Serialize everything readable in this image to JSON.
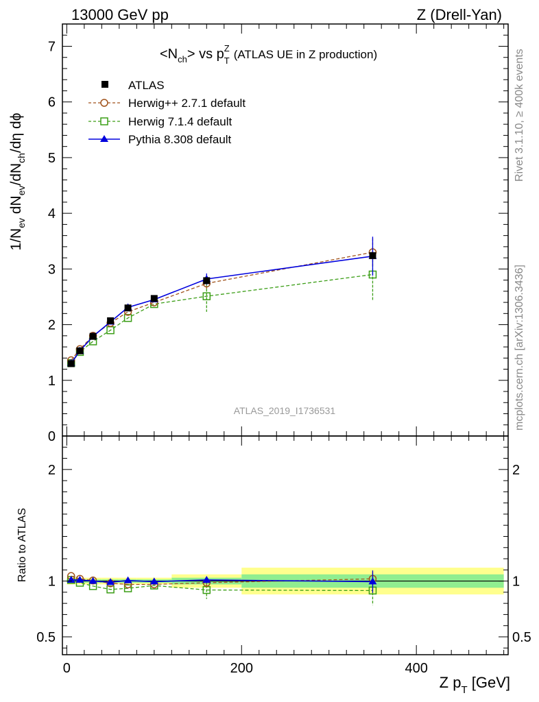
{
  "header": {
    "left": "13000 GeV pp",
    "right": "Z (Drell-Yan)"
  },
  "plot_title": {
    "main": "<N",
    "main_sub": "ch",
    "vs": "> vs p",
    "p_sup": "Z",
    "p_sub": "T",
    "suffix": "(ATLAS UE in Z production)"
  },
  "y_axis_label": {
    "a": "1/N",
    "a_sub": "ev",
    "b": " dN",
    "b_sub": "ev",
    "c": "/dN",
    "c_sub": "ch",
    "d": "/dη dϕ"
  },
  "ratio_y_label": "Ratio to ATLAS",
  "x_axis_label": {
    "a": "Z p",
    "a_sub": "T",
    "b": " [GeV]"
  },
  "side_text": {
    "rivet": "Rivet 3.1.10, ≥ 400k events",
    "mcplots": "mcplots.cern.ch [arXiv:1306.3436]"
  },
  "watermark": "ATLAS_2019_I1736531",
  "colors": {
    "atlas": "#000000",
    "herwigpp": "#a0521b",
    "herwig7": "#3a9d15",
    "pythia": "#0000dd",
    "band_inner": "#90ee90",
    "band_outer": "#ffff8e"
  },
  "chart_data": {
    "type": "line",
    "x_range": [
      -5,
      505
    ],
    "main_ylim": [
      0,
      7.4
    ],
    "ratio_ylim": [
      0.34,
      2.3
    ],
    "main_yticks": [
      0,
      1,
      2,
      3,
      4,
      5,
      6,
      7
    ],
    "main_ytick_labels": [
      "0",
      "1",
      "2",
      "3",
      "4",
      "5",
      "6",
      "7"
    ],
    "ratio_yticks": [
      0.5,
      1,
      2
    ],
    "ratio_ytick_labels": [
      "0.5",
      "1",
      "2"
    ],
    "xticks": [
      0,
      200,
      400
    ],
    "xtick_labels": [
      "0",
      "200",
      "400"
    ],
    "bins": [
      [
        0,
        10
      ],
      [
        10,
        20
      ],
      [
        20,
        40
      ],
      [
        40,
        60
      ],
      [
        60,
        80
      ],
      [
        80,
        120
      ],
      [
        120,
        200
      ],
      [
        200,
        500
      ]
    ],
    "x": [
      5,
      15,
      30,
      50,
      70,
      100,
      160,
      350
    ],
    "series": [
      {
        "name": "ATLAS",
        "marker": "square-filled",
        "values": [
          1.3,
          1.53,
          1.79,
          2.07,
          2.3,
          2.47,
          2.79,
          3.24
        ]
      },
      {
        "name": "Herwig++ 2.7.1 default",
        "marker": "circle-open",
        "dashed": true,
        "values": [
          1.36,
          1.56,
          1.8,
          2.03,
          2.23,
          2.4,
          2.74,
          3.3
        ],
        "errors": [
          0,
          0,
          0,
          0,
          0,
          0,
          0.1,
          0.25
        ],
        "ratio": [
          1.045,
          1.02,
          1.005,
          0.98,
          0.97,
          0.97,
          0.985,
          1.02
        ],
        "ratio_errors": [
          0,
          0,
          0,
          0,
          0,
          0,
          0.03,
          0.06
        ]
      },
      {
        "name": "Herwig 7.1.4 default",
        "marker": "square-open",
        "dashed": true,
        "values": [
          1.31,
          1.51,
          1.7,
          1.9,
          2.12,
          2.37,
          2.51,
          2.9
        ],
        "errors": [
          0,
          0,
          0,
          0,
          0,
          0,
          0.28,
          0.48
        ],
        "ratio": [
          1.01,
          0.985,
          0.955,
          0.925,
          0.935,
          0.96,
          0.92,
          0.915
        ],
        "ratio_errors": [
          0,
          0,
          0,
          0,
          0,
          0,
          0.08,
          0.13
        ]
      },
      {
        "name": "Pythia 8.308 default",
        "marker": "triangle-filled",
        "values": [
          1.31,
          1.53,
          1.79,
          2.05,
          2.31,
          2.45,
          2.82,
          3.23
        ],
        "errors": [
          0,
          0,
          0,
          0,
          0,
          0,
          0.1,
          0.35
        ],
        "ratio": [
          1.01,
          1.01,
          1.0,
          0.99,
          1.005,
          0.995,
          1.01,
          0.995
        ],
        "ratio_errors": [
          0,
          0,
          0,
          0,
          0,
          0,
          0.03,
          0.1
        ]
      }
    ],
    "ratio_band_inner": [
      0.015,
      0.015,
      0.015,
      0.015,
      0.015,
      0.015,
      0.03,
      0.06
    ],
    "ratio_band_outer": [
      0.03,
      0.03,
      0.03,
      0.03,
      0.03,
      0.03,
      0.06,
      0.12
    ]
  }
}
